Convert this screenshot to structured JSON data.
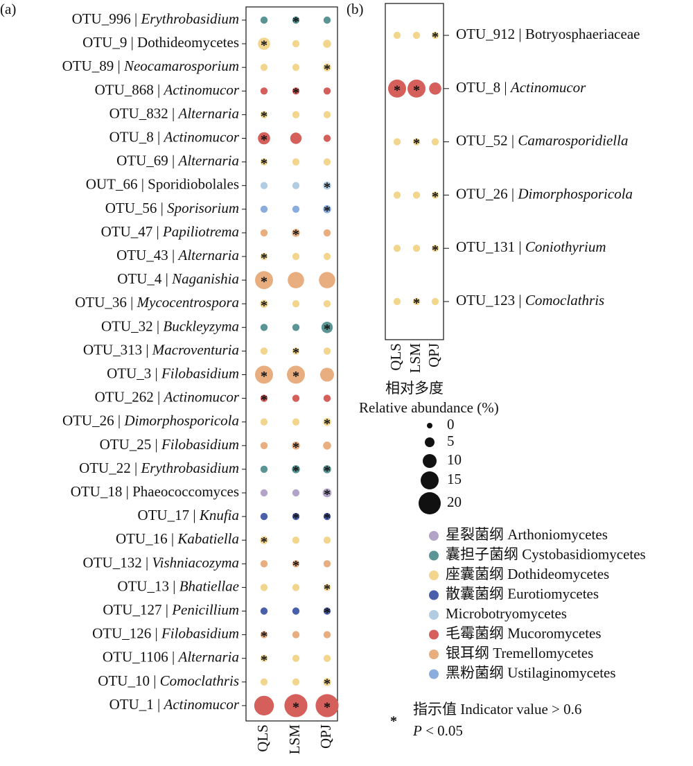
{
  "chart_data": [
    {
      "type": "bubble",
      "panel_label": "(a)",
      "label_side": "left",
      "categories": [
        "QLS",
        "LSM",
        "QPJ"
      ],
      "rows": [
        {
          "otu": "OTU_996 |",
          "taxon": "Erythrobasidium",
          "italic": true,
          "class": 1,
          "values": [
            2,
            2,
            2
          ],
          "indicator": [
            false,
            true,
            false
          ]
        },
        {
          "otu": "OTU_9 |",
          "taxon": "Dothideomycetes",
          "italic": false,
          "class": 2,
          "values": [
            8,
            2,
            3
          ],
          "indicator": [
            true,
            false,
            false
          ]
        },
        {
          "otu": "OTU_89 |",
          "taxon": "Neocamarosporium",
          "italic": true,
          "class": 2,
          "values": [
            2,
            2,
            3
          ],
          "indicator": [
            false,
            false,
            true
          ]
        },
        {
          "otu": "OTU_868 |",
          "taxon": "Actinomucor",
          "italic": true,
          "class": 5,
          "values": [
            2,
            2,
            2
          ],
          "indicator": [
            false,
            true,
            false
          ]
        },
        {
          "otu": "OTU_832 |",
          "taxon": "Alternaria",
          "italic": true,
          "class": 2,
          "values": [
            2,
            2,
            2
          ],
          "indicator": [
            true,
            false,
            false
          ]
        },
        {
          "otu": "OTU_8 |",
          "taxon": "Actinomucor",
          "italic": true,
          "class": 5,
          "values": [
            8,
            7,
            2
          ],
          "indicator": [
            true,
            false,
            false
          ]
        },
        {
          "otu": "OTU_69 |",
          "taxon": "Alternaria",
          "italic": true,
          "class": 2,
          "values": [
            2,
            2,
            2
          ],
          "indicator": [
            true,
            false,
            false
          ]
        },
        {
          "otu": "OUT_66 |",
          "taxon": "Sporidiobolales",
          "italic": false,
          "class": 4,
          "values": [
            2,
            2,
            3
          ],
          "indicator": [
            false,
            false,
            true
          ]
        },
        {
          "otu": "OTU_56 |",
          "taxon": "Sporisorium",
          "italic": true,
          "class": 7,
          "values": [
            2,
            2,
            3
          ],
          "indicator": [
            false,
            false,
            true
          ]
        },
        {
          "otu": "OTU_47 |",
          "taxon": "Papiliotrema",
          "italic": true,
          "class": 6,
          "values": [
            2,
            3,
            2
          ],
          "indicator": [
            false,
            true,
            false
          ]
        },
        {
          "otu": "OTU_43 |",
          "taxon": "Alternaria",
          "italic": true,
          "class": 2,
          "values": [
            2,
            2,
            2
          ],
          "indicator": [
            true,
            false,
            false
          ]
        },
        {
          "otu": "OTU_4 |",
          "taxon": "Naganishia",
          "italic": true,
          "class": 6,
          "values": [
            15,
            13,
            13
          ],
          "indicator": [
            true,
            false,
            false
          ]
        },
        {
          "otu": "OTU_36 |",
          "taxon": "Mycocentrospora",
          "italic": true,
          "class": 2,
          "values": [
            3,
            2,
            2
          ],
          "indicator": [
            true,
            false,
            false
          ]
        },
        {
          "otu": "OTU_32 |",
          "taxon": "Buckleyzyma",
          "italic": true,
          "class": 1,
          "values": [
            2,
            2,
            7
          ],
          "indicator": [
            false,
            false,
            true
          ]
        },
        {
          "otu": "OTU_313 |",
          "taxon": "Macroventuria",
          "italic": true,
          "class": 2,
          "values": [
            2,
            2,
            2
          ],
          "indicator": [
            false,
            true,
            false
          ]
        },
        {
          "otu": "OTU_3 |",
          "taxon": "Filobasidium",
          "italic": true,
          "class": 6,
          "values": [
            15,
            15,
            10
          ],
          "indicator": [
            true,
            true,
            false
          ]
        },
        {
          "otu": "OTU_262 |",
          "taxon": "Actinomucor",
          "italic": true,
          "class": 5,
          "values": [
            2,
            2,
            2
          ],
          "indicator": [
            true,
            false,
            false
          ]
        },
        {
          "otu": "OTU_26 |",
          "taxon": "Dimorphosporicola",
          "italic": true,
          "class": 2,
          "values": [
            2,
            2,
            3
          ],
          "indicator": [
            false,
            false,
            true
          ]
        },
        {
          "otu": "OTU_25 |",
          "taxon": "Filobasidium",
          "italic": true,
          "class": 6,
          "values": [
            2,
            3,
            3
          ],
          "indicator": [
            false,
            true,
            false
          ]
        },
        {
          "otu": "OTU_22 |",
          "taxon": "Erythrobasidium",
          "italic": true,
          "class": 1,
          "values": [
            2,
            3,
            3
          ],
          "indicator": [
            false,
            true,
            true
          ]
        },
        {
          "otu": "OTU_18 |",
          "taxon": "Phaeococcomyces",
          "italic": false,
          "class": 0,
          "values": [
            2,
            2,
            4
          ],
          "indicator": [
            false,
            false,
            true
          ]
        },
        {
          "otu": "OTU_17 |",
          "taxon": "Knufia",
          "italic": true,
          "class": 3,
          "values": [
            2,
            2,
            2
          ],
          "indicator": [
            false,
            true,
            true
          ]
        },
        {
          "otu": "OTU_16 |",
          "taxon": "Kabatiella",
          "italic": true,
          "class": 2,
          "values": [
            3,
            2,
            2
          ],
          "indicator": [
            true,
            false,
            false
          ]
        },
        {
          "otu": "OTU_132 |",
          "taxon": "Vishniacozyma",
          "italic": true,
          "class": 6,
          "values": [
            2,
            2,
            2
          ],
          "indicator": [
            false,
            true,
            false
          ]
        },
        {
          "otu": "OTU_13 |",
          "taxon": "Bhatiellae",
          "italic": true,
          "class": 2,
          "values": [
            2,
            2,
            2
          ],
          "indicator": [
            false,
            false,
            true
          ]
        },
        {
          "otu": "OTU_127 |",
          "taxon": "Penicillium",
          "italic": true,
          "class": 3,
          "values": [
            2,
            2,
            2
          ],
          "indicator": [
            false,
            false,
            true
          ]
        },
        {
          "otu": "OTU_126 |",
          "taxon": "Filobasidium",
          "italic": true,
          "class": 6,
          "values": [
            2,
            2,
            2
          ],
          "indicator": [
            true,
            false,
            false
          ]
        },
        {
          "otu": "OTU_1106 |",
          "taxon": "Alternaria",
          "italic": true,
          "class": 2,
          "values": [
            2,
            2,
            2
          ],
          "indicator": [
            true,
            false,
            false
          ]
        },
        {
          "otu": "OTU_10 |",
          "taxon": "Comoclathris",
          "italic": true,
          "class": 2,
          "values": [
            2,
            2,
            3
          ],
          "indicator": [
            false,
            false,
            true
          ]
        },
        {
          "otu": "OTU_1 |",
          "taxon": "Actinomucor",
          "italic": true,
          "class": 5,
          "values": [
            17,
            21,
            21
          ],
          "indicator": [
            false,
            true,
            true
          ]
        }
      ]
    },
    {
      "type": "bubble",
      "panel_label": "(b)",
      "label_side": "right",
      "categories": [
        "QLS",
        "LSM",
        "QPJ"
      ],
      "rows": [
        {
          "otu": "OTU_912 |",
          "taxon": "Botryosphaeriaceae",
          "italic": false,
          "class": 2,
          "values": [
            2,
            2,
            2
          ],
          "indicator": [
            false,
            false,
            true
          ]
        },
        {
          "otu": "OTU_8 |",
          "taxon": "Actinomucor",
          "italic": true,
          "class": 5,
          "values": [
            15,
            15,
            8
          ],
          "indicator": [
            true,
            true,
            false
          ]
        },
        {
          "otu": "OTU_52 |",
          "taxon": "Camarosporidiella",
          "italic": true,
          "class": 2,
          "values": [
            2,
            2,
            2
          ],
          "indicator": [
            false,
            true,
            false
          ]
        },
        {
          "otu": "OTU_26 |",
          "taxon": "Dimorphosporicola",
          "italic": true,
          "class": 2,
          "values": [
            2,
            2,
            2
          ],
          "indicator": [
            false,
            false,
            true
          ]
        },
        {
          "otu": "OTU_131 |",
          "taxon": "Coniothyrium",
          "italic": true,
          "class": 2,
          "values": [
            2,
            2,
            2
          ],
          "indicator": [
            false,
            false,
            true
          ]
        },
        {
          "otu": "OTU_123 |",
          "taxon": "Comoclathris",
          "italic": true,
          "class": 2,
          "values": [
            2,
            2,
            2
          ],
          "indicator": [
            false,
            true,
            false
          ]
        }
      ]
    }
  ],
  "size_legend": {
    "title_cn": "相对多度",
    "title": "Relative abundance (%)",
    "values": [
      0,
      5,
      10,
      15,
      20
    ],
    "color": "#111111"
  },
  "class_legend": [
    {
      "name": "星裂菌纲 Arthoniomycetes",
      "color": "#b3a3c8"
    },
    {
      "name": "囊担子菌纲 Cystobasidiomycetes",
      "color": "#5a9495"
    },
    {
      "name": "座囊菌纲 Dothideomycetes",
      "color": "#f3d68e"
    },
    {
      "name": "散囊菌纲 Eurotiomycetes",
      "color": "#4a5fa9"
    },
    {
      "name": "Microbotryomycetes",
      "color": "#b2cce2"
    },
    {
      "name": "毛霉菌纲 Mucoromycetes",
      "color": "#d55f5b"
    },
    {
      "name": "银耳纲 Tremellomycetes",
      "color": "#e8ae80"
    },
    {
      "name": "黑粉菌纲 Ustilaginomycetes",
      "color": "#8badde"
    }
  ],
  "indicator_note": {
    "symbol": "*",
    "text": "指示值 Indicator value > 0.6",
    "p_symbol": "P",
    "p_text": "< 0.05"
  }
}
